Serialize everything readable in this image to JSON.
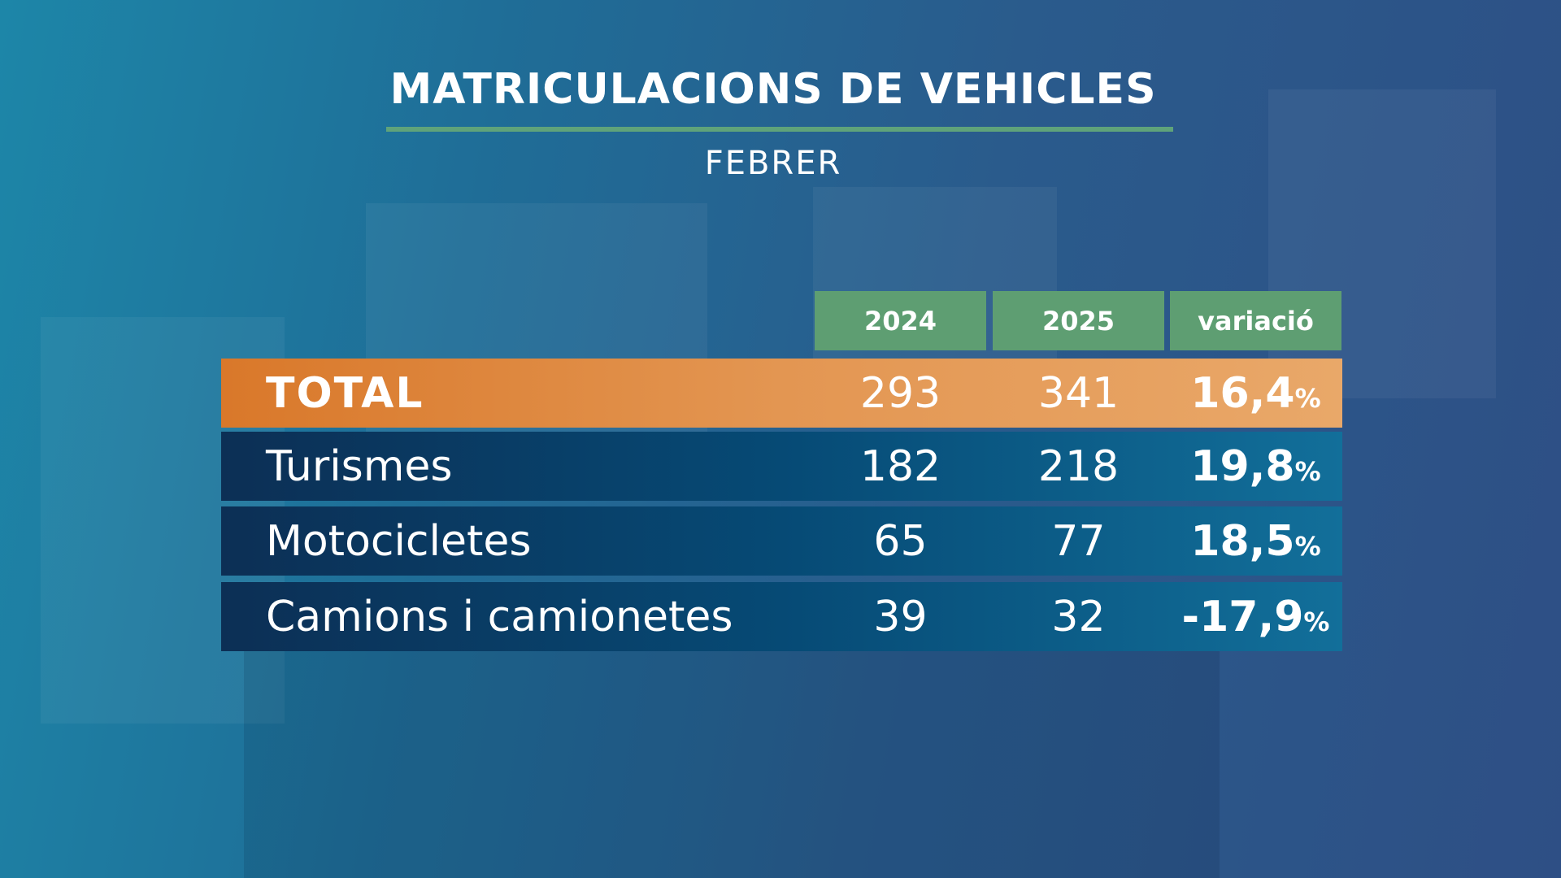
{
  "header": {
    "title": "MATRICULACIONS DE VEHICLES",
    "subtitle": "FEBRER"
  },
  "table": {
    "columns": [
      "2024",
      "2025",
      "variació"
    ],
    "rows": [
      {
        "label": "TOTAL",
        "cells": [
          "293",
          "341"
        ],
        "variation": "16,4",
        "unit": "%"
      },
      {
        "label": "Turismes",
        "cells": [
          "182",
          "218"
        ],
        "variation": "19,8",
        "unit": "%"
      },
      {
        "label": "Motocicletes",
        "cells": [
          "65",
          "77"
        ],
        "variation": "18,5",
        "unit": "%"
      },
      {
        "label": "Camions i camionetes",
        "cells": [
          "39",
          "32"
        ],
        "variation": "-17,9",
        "unit": "%"
      }
    ]
  }
}
